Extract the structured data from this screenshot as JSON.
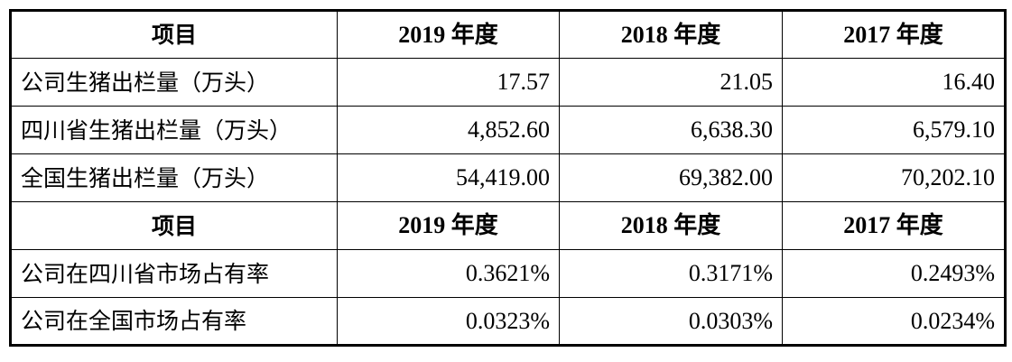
{
  "table1": {
    "headers": [
      "项目",
      "2019 年度",
      "2018 年度",
      "2017 年度"
    ],
    "rows": [
      {
        "label": "公司生猪出栏量（万头）",
        "values": [
          "17.57",
          "21.05",
          "16.40"
        ]
      },
      {
        "label": "四川省生猪出栏量（万头）",
        "values": [
          "4,852.60",
          "6,638.30",
          "6,579.10"
        ]
      },
      {
        "label": "全国生猪出栏量（万头）",
        "values": [
          "54,419.00",
          "69,382.00",
          "70,202.10"
        ]
      }
    ]
  },
  "table2": {
    "headers": [
      "项目",
      "2019 年度",
      "2018 年度",
      "2017 年度"
    ],
    "rows": [
      {
        "label": "公司在四川省市场占有率",
        "values": [
          "0.3621%",
          "0.3171%",
          "0.2493%"
        ]
      },
      {
        "label": "公司在全国市场占有率",
        "values": [
          "0.0323%",
          "0.0303%",
          "0.0234%"
        ]
      }
    ]
  }
}
